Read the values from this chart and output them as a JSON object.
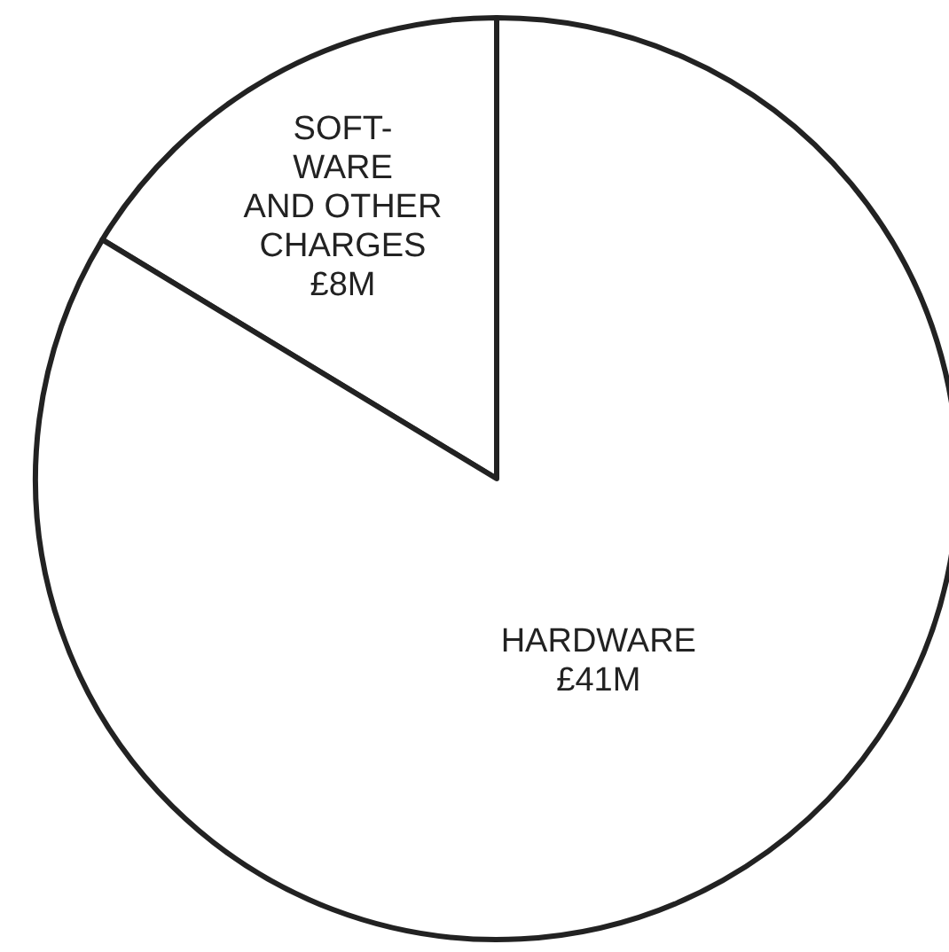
{
  "chart_data": {
    "type": "pie",
    "categories": [
      "SOFT-\nWARE\nAND OTHER\nCHARGES",
      "HARDWARE"
    ],
    "values": [
      8,
      41
    ],
    "colors": [
      "#ffffff",
      "#ffffff"
    ],
    "value_labels": [
      "£8M",
      "£41M"
    ]
  }
}
